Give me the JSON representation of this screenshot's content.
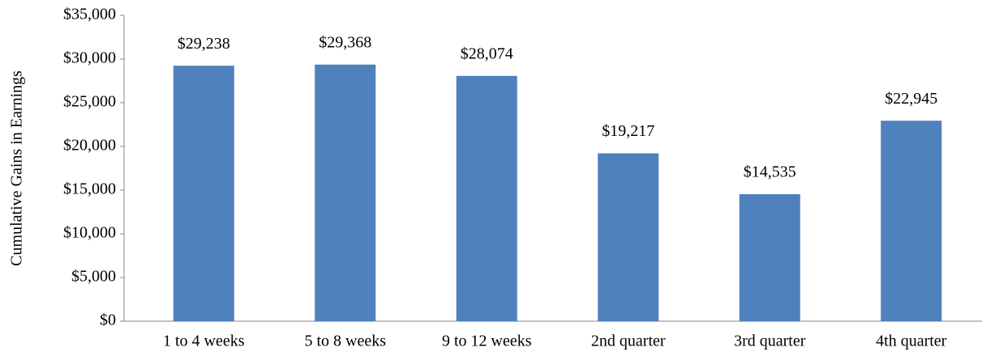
{
  "chart_data": {
    "type": "bar",
    "y_label": "Cumulative Gains in Earnings",
    "categories": [
      "1 to 4 weeks",
      "5 to 8 weeks",
      "9 to 12 weeks",
      "2nd quarter",
      "3rd quarter",
      "4th quarter"
    ],
    "values": [
      29238,
      29368,
      28074,
      19217,
      14535,
      22945
    ],
    "value_labels": [
      "$29,238",
      "$29,368",
      "$28,074",
      "$19,217",
      "$14,535",
      "$22,945"
    ],
    "color": "#4f81bd",
    "ylim": [
      0,
      35000
    ],
    "yticks": [
      {
        "value": 0,
        "label": "$0"
      },
      {
        "value": 5000,
        "label": "$5,000"
      },
      {
        "value": 10000,
        "label": "$10,000"
      },
      {
        "value": 15000,
        "label": "$15,000"
      },
      {
        "value": 20000,
        "label": "$20,000"
      },
      {
        "value": 25000,
        "label": "$25,000"
      },
      {
        "value": 30000,
        "label": "$30,000"
      },
      {
        "value": 35000,
        "label": "$35,000"
      }
    ],
    "grid": false
  }
}
